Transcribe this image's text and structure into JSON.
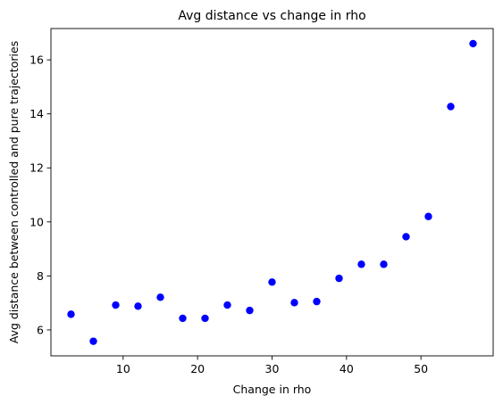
{
  "chart_data": {
    "type": "scatter",
    "title": "Avg distance vs change in rho",
    "xlabel": "Change in rho",
    "ylabel": "Avg distance between controlled and pure trajectories",
    "xlim": [
      0.3,
      59.7
    ],
    "ylim": [
      5.04,
      17.16
    ],
    "xticks": [
      10,
      20,
      30,
      40,
      50
    ],
    "yticks": [
      6,
      8,
      10,
      12,
      14,
      16
    ],
    "grid": false,
    "marker_color": "#0000ff",
    "series": [
      {
        "x": [
          3,
          6,
          9,
          12,
          15,
          18,
          21,
          24,
          27,
          30,
          33,
          36,
          39,
          42,
          45,
          48,
          51,
          54,
          57
        ],
        "y": [
          6.58,
          5.58,
          6.92,
          6.88,
          7.21,
          6.43,
          6.43,
          6.92,
          6.72,
          7.77,
          7.01,
          7.05,
          7.91,
          8.43,
          8.43,
          9.45,
          10.2,
          14.27,
          16.6
        ]
      }
    ]
  }
}
